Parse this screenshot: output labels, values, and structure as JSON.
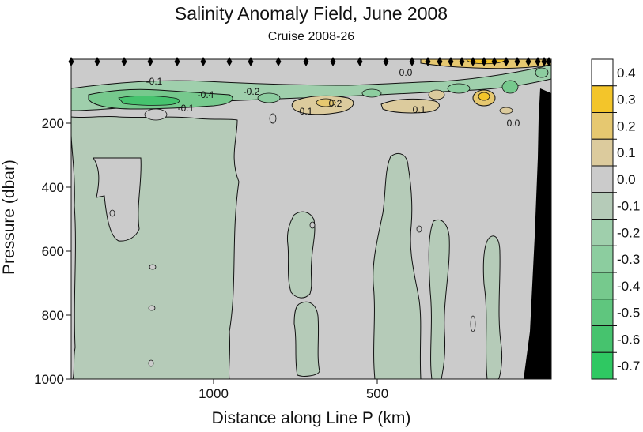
{
  "chart_data": {
    "type": "heatmap",
    "title": "Salinity Anomaly Field,  June 2008",
    "subtitle": "Cruise 2008-26",
    "xlabel": "Distance along Line P  (km)",
    "ylabel": "Pressure  (dbar)",
    "x_axis": {
      "reversed": true,
      "ticks": [
        1000,
        500
      ]
    },
    "y_axis": {
      "range": [
        0,
        1000
      ],
      "inverted": true,
      "ticks": [
        200,
        400,
        600,
        800,
        1000
      ]
    },
    "colorbar": {
      "levels": [
        {
          "label": "0.4",
          "color": "#ffffff"
        },
        {
          "label": "0.3",
          "color": "#f3c52a"
        },
        {
          "label": "0.2",
          "color": "#e6c870"
        },
        {
          "label": "0.1",
          "color": "#dccb9d"
        },
        {
          "label": "0.0",
          "color": "#cbcbcb"
        },
        {
          "label": "-0.1",
          "color": "#b5cbb8"
        },
        {
          "label": "-0.2",
          "color": "#9fcfac"
        },
        {
          "label": "-0.3",
          "color": "#8ccd9f"
        },
        {
          "label": "-0.4",
          "color": "#76c98d"
        },
        {
          "label": "-0.5",
          "color": "#5fc67e"
        },
        {
          "label": "-0.6",
          "color": "#46c36e"
        },
        {
          "label": "-0.7",
          "color": "#2fc862"
        }
      ]
    },
    "contour_labels": [
      "-0.1",
      "-0.4",
      "-0.2",
      "-0.1",
      "0.0",
      "0.2",
      "0.1",
      "0.1",
      "0.0"
    ],
    "background_anomaly_color": "#cbcbcb",
    "negative_anomaly_color": "#b5cbb8",
    "bathymetry_color": "#000000"
  }
}
